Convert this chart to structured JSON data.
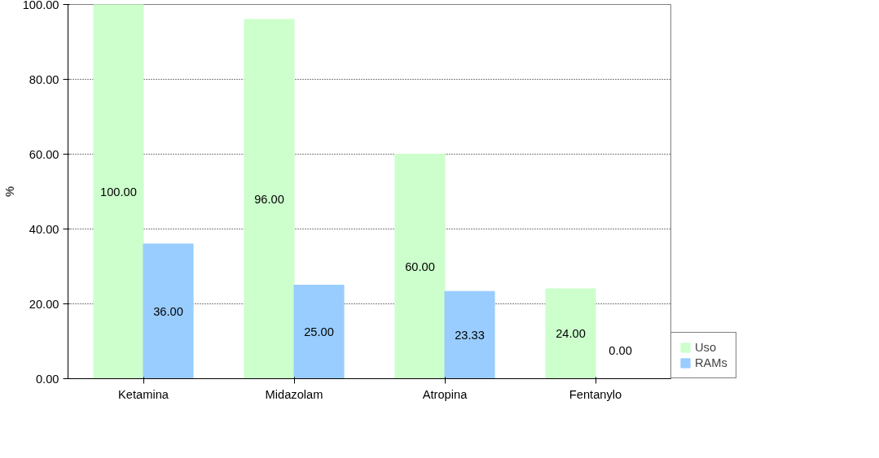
{
  "chart_data": {
    "type": "bar",
    "ylabel": "%",
    "categories": [
      "Ketamina",
      "Midazolam",
      "Atropina",
      "Fentanylo"
    ],
    "series": [
      {
        "name": "Uso",
        "color": "#ccffcc",
        "values": [
          100,
          96,
          60,
          24
        ],
        "value_labels": [
          "100.00",
          "96.00",
          "60.00",
          "24.00"
        ]
      },
      {
        "name": "RAMs",
        "color": "#99ccff",
        "values": [
          36,
          25,
          23.33,
          0
        ],
        "value_labels": [
          "36.00",
          "25.00",
          "23.33",
          "0.00"
        ]
      }
    ],
    "ylim": [
      0,
      100
    ],
    "yticks": [
      {
        "value": 0,
        "label": "0.00"
      },
      {
        "value": 20,
        "label": "20.00"
      },
      {
        "value": 40,
        "label": "40.00"
      },
      {
        "value": 60,
        "label": "60.00"
      },
      {
        "value": 80,
        "label": "80.00"
      },
      {
        "value": 100,
        "label": "100.00"
      }
    ],
    "grid": "y",
    "legend": "bottom right"
  }
}
